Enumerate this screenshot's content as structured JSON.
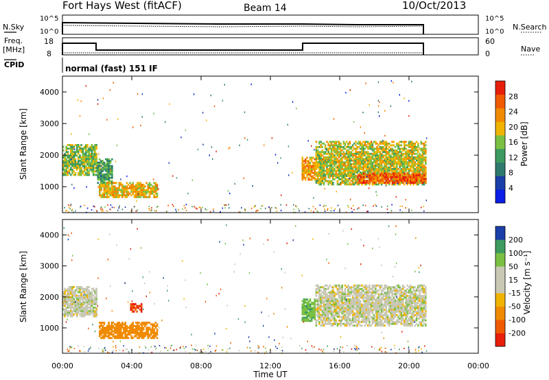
{
  "header": {
    "title": "Fort Hays West (fitACF)",
    "beam": "Beam 14",
    "date": "10/Oct/2013"
  },
  "noise_panel": {
    "label": "N.Sky",
    "right_label": "N.Search",
    "ticks": [
      "10^5",
      "10^0"
    ]
  },
  "freq_panel": {
    "label_line1": "Freq.",
    "label_line2": "[MHz]",
    "left_ticks": [
      "18",
      "8"
    ],
    "right_label": "Nave",
    "right_ticks": [
      "60",
      "0"
    ]
  },
  "cpid": {
    "label": "CPID",
    "text": "normal (fast) 151 IF"
  },
  "colors": {
    "power": [
      "#0a1ee6",
      "#1b3fa8",
      "#2e7a6e",
      "#3d9b5f",
      "#7bc043",
      "#f0b400",
      "#f08a00",
      "#f05a00",
      "#e61e0a"
    ],
    "velocity": [
      "#e61e0a",
      "#f05a00",
      "#f08a00",
      "#f0b400",
      "#c8c8b4",
      "#c8c8b4",
      "#7bc043",
      "#3d9b5f",
      "#1b3fa8"
    ]
  },
  "chart_data": [
    {
      "type": "heatmap",
      "name": "power",
      "ylabel": "Slant Range [km]",
      "colorbar_label": "Power [dB]",
      "colorbar_ticks": [
        "4",
        "8",
        "12",
        "16",
        "20",
        "24",
        "28"
      ],
      "colorbar_range": [
        0,
        32
      ],
      "yticks": [
        "1000",
        "2000",
        "3000",
        "4000"
      ],
      "ylim": [
        180,
        4500
      ],
      "xlim": [
        0,
        24
      ],
      "echo_regions": [
        {
          "t": [
            0,
            2
          ],
          "r": [
            1350,
            2350
          ],
          "value": 16
        },
        {
          "t": [
            2,
            2.9
          ],
          "r": [
            1100,
            1900
          ],
          "value": 12
        },
        {
          "t": [
            2.1,
            5.5
          ],
          "r": [
            650,
            1150
          ],
          "value": 20
        },
        {
          "t": [
            13.8,
            14.6
          ],
          "r": [
            1200,
            1950
          ],
          "value": 22
        },
        {
          "t": [
            14.6,
            21
          ],
          "r": [
            1050,
            2450
          ],
          "value": 18
        },
        {
          "t": [
            17,
            21
          ],
          "r": [
            1100,
            1450
          ],
          "value": 26
        }
      ]
    },
    {
      "type": "heatmap",
      "name": "velocity",
      "ylabel": "Slant Range [km]",
      "xlabel": "Time UT",
      "colorbar_label": "Velocity [m s⁻¹]",
      "colorbar_ticks": [
        "-200",
        "-100",
        "-50",
        "-15",
        "15",
        "50",
        "100",
        "200"
      ],
      "yticks": [
        "1000",
        "2000",
        "3000",
        "4000"
      ],
      "ylim": [
        180,
        4500
      ],
      "xlim": [
        0,
        24
      ],
      "xticks": [
        "00:00",
        "04:00",
        "08:00",
        "12:00",
        "16:00",
        "20:00",
        "00:00"
      ],
      "echo_regions": [
        {
          "t": [
            0,
            2
          ],
          "r": [
            1350,
            2350
          ],
          "value": 0
        },
        {
          "t": [
            2.1,
            5.5
          ],
          "r": [
            650,
            1200
          ],
          "value": -80
        },
        {
          "t": [
            3.9,
            4.6
          ],
          "r": [
            1500,
            1800
          ],
          "value": -200
        },
        {
          "t": [
            13.8,
            14.6
          ],
          "r": [
            1200,
            1950
          ],
          "value": 40
        },
        {
          "t": [
            14.6,
            21
          ],
          "r": [
            1050,
            2400
          ],
          "value": 0
        }
      ]
    }
  ]
}
